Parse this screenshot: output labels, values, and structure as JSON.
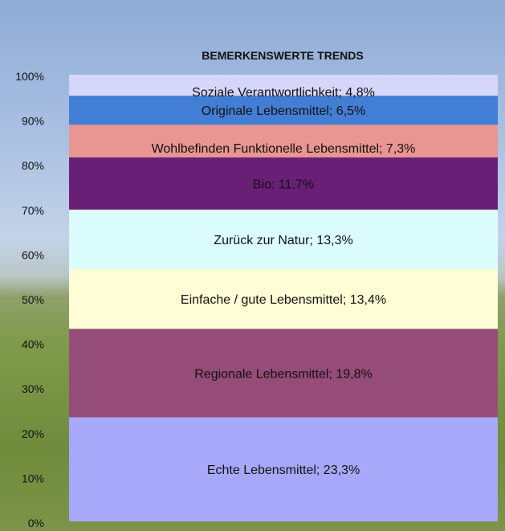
{
  "chart_data": {
    "type": "bar",
    "stacked": true,
    "title": "BEMERKENSWERTE TRENDS",
    "xlabel": "",
    "ylabel": "",
    "ylim": [
      0,
      100
    ],
    "yticks": [
      "0%",
      "10%",
      "20%",
      "30%",
      "40%",
      "50%",
      "60%",
      "70%",
      "80%",
      "90%",
      "100%"
    ],
    "grid": false,
    "series": [
      {
        "name": "Echte Lebensmittel",
        "value": 23.3,
        "label": "Echte Lebensmittel; 23,3%",
        "color": "#a8a8fa"
      },
      {
        "name": "Regionale Lebensmittel",
        "value": 19.8,
        "label": "Regionale Lebensmittel; 19,8%",
        "color": "#964c78"
      },
      {
        "name": "Einfache / gute Lebensmittel",
        "value": 13.4,
        "label": "Einfache / gute Lebensmittel; 13,4%",
        "color": "#fefdd6"
      },
      {
        "name": "Zurück zur Natur",
        "value": 13.3,
        "label": "Zurück zur Natur; 13,3%",
        "color": "#dbfdfe"
      },
      {
        "name": "Bio",
        "value": 11.7,
        "label": "Bio; 11,7%",
        "color": "#6a1f77"
      },
      {
        "name": "Wohlbefinden Funktionelle Lebensmittel",
        "value": 7.3,
        "label": "Wohlbefinden Funktionelle Lebensmittel; 7,3%",
        "color": "#e99692"
      },
      {
        "name": "Originale Lebensmittel",
        "value": 6.5,
        "label": "Originale Lebensmittel; 6,5%",
        "color": "#427ed4"
      },
      {
        "name": "Soziale Verantwortlichkeit",
        "value": 4.8,
        "label": "Soziale Verantwortlichkeit; 4,8%",
        "color": "#d6d6fa"
      }
    ]
  }
}
